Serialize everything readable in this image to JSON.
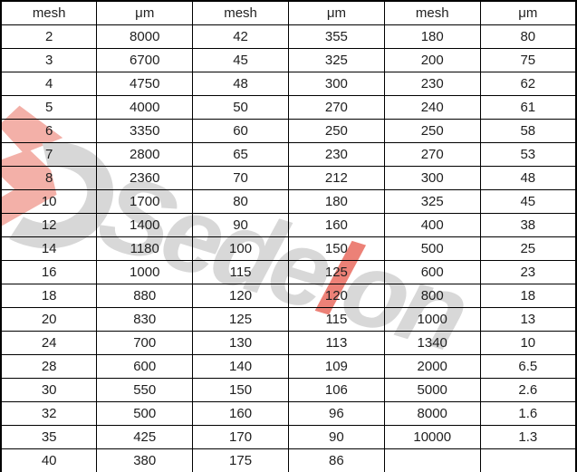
{
  "table": {
    "headers": [
      "mesh",
      "μm",
      "mesh",
      "μm",
      "mesh",
      "μm"
    ],
    "rows": [
      [
        "2",
        "8000",
        "42",
        "355",
        "180",
        "80"
      ],
      [
        "3",
        "6700",
        "45",
        "325",
        "200",
        "75"
      ],
      [
        "4",
        "4750",
        "48",
        "300",
        "230",
        "62"
      ],
      [
        "5",
        "4000",
        "50",
        "270",
        "240",
        "61"
      ],
      [
        "6",
        "3350",
        "60",
        "250",
        "250",
        "58"
      ],
      [
        "7",
        "2800",
        "65",
        "230",
        "270",
        "53"
      ],
      [
        "8",
        "2360",
        "70",
        "212",
        "300",
        "48"
      ],
      [
        "10",
        "1700",
        "80",
        "180",
        "325",
        "45"
      ],
      [
        "12",
        "1400",
        "90",
        "160",
        "400",
        "38"
      ],
      [
        "14",
        "1180",
        "100",
        "150",
        "500",
        "25"
      ],
      [
        "16",
        "1000",
        "115",
        "125",
        "600",
        "23"
      ],
      [
        "18",
        "880",
        "120",
        "120",
        "800",
        "18"
      ],
      [
        "20",
        "830",
        "125",
        "115",
        "1000",
        "13"
      ],
      [
        "24",
        "700",
        "130",
        "113",
        "1340",
        "10"
      ],
      [
        "28",
        "600",
        "140",
        "109",
        "2000",
        "6.5"
      ],
      [
        "30",
        "550",
        "150",
        "106",
        "5000",
        "2.6"
      ],
      [
        "32",
        "500",
        "160",
        "96",
        "8000",
        "1.6"
      ],
      [
        "35",
        "425",
        "170",
        "90",
        "10000",
        "1.3"
      ],
      [
        "40",
        "380",
        "175",
        "86",
        "",
        ""
      ]
    ]
  },
  "watermark": {
    "brand": "Sedelon",
    "segments": [
      {
        "text": "Sede",
        "tone": "gray"
      },
      {
        "text": "l",
        "tone": "red"
      },
      {
        "text": "on",
        "tone": "gray"
      }
    ],
    "colors": {
      "gray": "#d8d8d8",
      "red": "#ec8177",
      "logo_red": "#f3b0a8",
      "logo_gray": "#d7d7d7"
    }
  },
  "colors": {
    "grid_line": "#000000",
    "cell_text": "#1f1f1f",
    "background": "#ffffff"
  }
}
